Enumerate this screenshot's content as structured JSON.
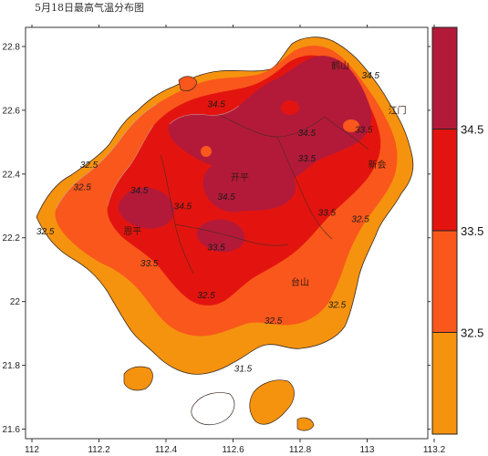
{
  "title": "5月18日最高气温分布图",
  "legend": {
    "bins": [
      {
        "range": "≥34.5",
        "color": "#b31a3a"
      },
      {
        "range": "33.5–34.5",
        "color": "#e3140f"
      },
      {
        "range": "32.5–33.5",
        "color": "#f9571c"
      },
      {
        "range": "<32.5",
        "color": "#f5930f"
      }
    ],
    "tick_labels": [
      "34.5",
      "33.5",
      "32.5"
    ]
  },
  "axes": {
    "x_ticks": [
      "112",
      "112.2",
      "112.4",
      "112.6",
      "112.8",
      "113",
      "113.2"
    ],
    "y_ticks": [
      "22.8",
      "22.6",
      "22.4",
      "22.2",
      "22",
      "21.8",
      "21.6"
    ]
  },
  "contour_labels": [
    {
      "text": "34.5",
      "lon": 112.55,
      "lat": 22.61
    },
    {
      "text": "34.5",
      "lon": 112.82,
      "lat": 22.52
    },
    {
      "text": "34.5",
      "lon": 113.01,
      "lat": 22.7
    },
    {
      "text": "34.5",
      "lon": 112.32,
      "lat": 22.34
    },
    {
      "text": "34.5",
      "lon": 112.58,
      "lat": 22.32
    },
    {
      "text": "34.5",
      "lon": 112.45,
      "lat": 22.29
    },
    {
      "text": "33.5",
      "lon": 112.82,
      "lat": 22.44
    },
    {
      "text": "33.5",
      "lon": 112.99,
      "lat": 22.53
    },
    {
      "text": "33.5",
      "lon": 112.55,
      "lat": 22.16
    },
    {
      "text": "33.5",
      "lon": 112.88,
      "lat": 22.27
    },
    {
      "text": "33.5",
      "lon": 112.35,
      "lat": 22.11
    },
    {
      "text": "32.5",
      "lon": 112.17,
      "lat": 22.42
    },
    {
      "text": "32.5",
      "lon": 112.15,
      "lat": 22.35
    },
    {
      "text": "32.5",
      "lon": 112.04,
      "lat": 22.21
    },
    {
      "text": "32.5",
      "lon": 112.98,
      "lat": 22.25
    },
    {
      "text": "32.5",
      "lon": 112.52,
      "lat": 22.01
    },
    {
      "text": "32.5",
      "lon": 112.72,
      "lat": 21.93
    },
    {
      "text": "32.5",
      "lon": 112.91,
      "lat": 21.98
    },
    {
      "text": "31.5",
      "lon": 112.63,
      "lat": 21.78
    }
  ],
  "place_labels": [
    {
      "text": "新会",
      "lon": 113.03,
      "lat": 22.42
    },
    {
      "text": "台山",
      "lon": 112.8,
      "lat": 22.05
    },
    {
      "text": "开平",
      "lon": 112.62,
      "lat": 22.38
    },
    {
      "text": "恩平",
      "lon": 112.3,
      "lat": 22.21
    },
    {
      "text": "鹤山",
      "lon": 112.92,
      "lat": 22.73
    },
    {
      "text": "江门",
      "lon": 113.09,
      "lat": 22.59
    }
  ]
}
